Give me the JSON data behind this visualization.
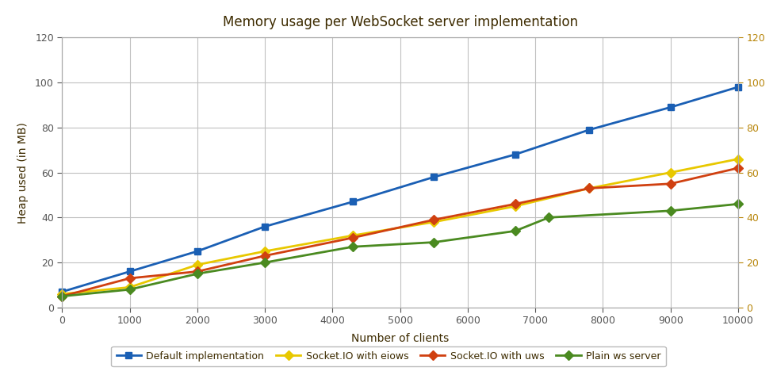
{
  "title": "Memory usage per WebSocket server implementation",
  "xlabel": "Number of clients",
  "ylabel": "Heap used (in MB)",
  "xlim": [
    0,
    10000
  ],
  "ylim": [
    0,
    120
  ],
  "x_ticks": [
    0,
    1000,
    2000,
    3000,
    4000,
    5000,
    6000,
    7000,
    8000,
    9000,
    10000
  ],
  "y_ticks": [
    0,
    20,
    40,
    60,
    80,
    100,
    120
  ],
  "series": [
    {
      "label": "Default implementation",
      "color": "#1a5fb4",
      "marker": "s",
      "x": [
        0,
        1000,
        2000,
        3000,
        4300,
        5500,
        6700,
        7800,
        9000,
        10000
      ],
      "y": [
        7,
        16,
        25,
        36,
        47,
        58,
        68,
        79,
        89,
        98
      ]
    },
    {
      "label": "Socket.IO with eiows",
      "color": "#e8c800",
      "marker": "D",
      "x": [
        0,
        1000,
        2000,
        3000,
        4300,
        5500,
        6700,
        7800,
        9000,
        10000
      ],
      "y": [
        6,
        9,
        19,
        25,
        32,
        38,
        45,
        53,
        60,
        66
      ]
    },
    {
      "label": "Socket.IO with uws",
      "color": "#d04010",
      "marker": "D",
      "x": [
        0,
        1000,
        2000,
        3000,
        4300,
        5500,
        6700,
        7800,
        9000,
        10000
      ],
      "y": [
        5,
        13,
        16,
        23,
        31,
        39,
        46,
        53,
        55,
        62
      ]
    },
    {
      "label": "Plain ws server",
      "color": "#4a8a20",
      "marker": "D",
      "x": [
        0,
        1000,
        2000,
        3000,
        4300,
        5500,
        6700,
        7200,
        9000,
        10000
      ],
      "y": [
        5,
        8,
        15,
        20,
        27,
        29,
        34,
        40,
        43,
        46
      ]
    }
  ],
  "background_color": "#ffffff",
  "grid_color": "#c0c0c0",
  "title_color": "#3d2b00",
  "axis_label_color": "#3d2b00",
  "right_axis_tick_color": "#b8860b",
  "left_tick_color": "#555555",
  "legend_text_color": "#3d2b00",
  "spine_color": "#aaaaaa",
  "figure_width": 9.8,
  "figure_height": 4.73,
  "dpi": 100
}
